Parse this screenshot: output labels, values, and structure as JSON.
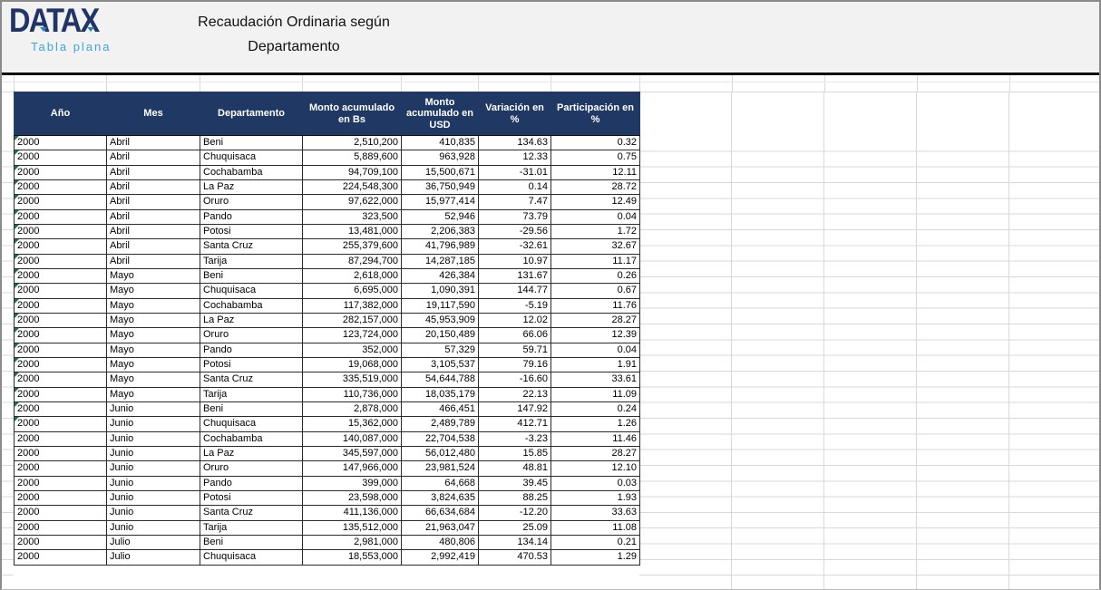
{
  "header": {
    "logo_title": "DATAX",
    "logo_subtitle": "Tabla plana",
    "title_line1": "Recaudación Ordinaria según",
    "title_line2": "Departamento"
  },
  "colors": {
    "table_header_bg": "#1f3864",
    "logo_navy": "#203468",
    "logo_blue": "#3fa3dc",
    "gridline": "#d9d9d9",
    "flag_green": "#217346",
    "top_band_bg": "#f2f2f2"
  },
  "table": {
    "columns": [
      "Año",
      "Mes",
      "Departamento",
      "Monto acumulado en Bs",
      "Monto acumulado en USD",
      "Variación en %",
      "Participación en %"
    ],
    "flagged_row_count": 20,
    "rows": [
      [
        "2000",
        "Abril",
        "Beni",
        "2,510,200",
        "410,835",
        "134.63",
        "0.32"
      ],
      [
        "2000",
        "Abril",
        "Chuquisaca",
        "5,889,600",
        "963,928",
        "12.33",
        "0.75"
      ],
      [
        "2000",
        "Abril",
        "Cochabamba",
        "94,709,100",
        "15,500,671",
        "-31.01",
        "12.11"
      ],
      [
        "2000",
        "Abril",
        "La Paz",
        "224,548,300",
        "36,750,949",
        "0.14",
        "28.72"
      ],
      [
        "2000",
        "Abril",
        "Oruro",
        "97,622,000",
        "15,977,414",
        "7.47",
        "12.49"
      ],
      [
        "2000",
        "Abril",
        "Pando",
        "323,500",
        "52,946",
        "73.79",
        "0.04"
      ],
      [
        "2000",
        "Abril",
        "Potosi",
        "13,481,000",
        "2,206,383",
        "-29.56",
        "1.72"
      ],
      [
        "2000",
        "Abril",
        "Santa Cruz",
        "255,379,600",
        "41,796,989",
        "-32.61",
        "32.67"
      ],
      [
        "2000",
        "Abril",
        "Tarija",
        "87,294,700",
        "14,287,185",
        "10.97",
        "11.17"
      ],
      [
        "2000",
        "Mayo",
        "Beni",
        "2,618,000",
        "426,384",
        "131.67",
        "0.26"
      ],
      [
        "2000",
        "Mayo",
        "Chuquisaca",
        "6,695,000",
        "1,090,391",
        "144.77",
        "0.67"
      ],
      [
        "2000",
        "Mayo",
        "Cochabamba",
        "117,382,000",
        "19,117,590",
        "-5.19",
        "11.76"
      ],
      [
        "2000",
        "Mayo",
        "La Paz",
        "282,157,000",
        "45,953,909",
        "12.02",
        "28.27"
      ],
      [
        "2000",
        "Mayo",
        "Oruro",
        "123,724,000",
        "20,150,489",
        "66.06",
        "12.39"
      ],
      [
        "2000",
        "Mayo",
        "Pando",
        "352,000",
        "57,329",
        "59.71",
        "0.04"
      ],
      [
        "2000",
        "Mayo",
        "Potosi",
        "19,068,000",
        "3,105,537",
        "79.16",
        "1.91"
      ],
      [
        "2000",
        "Mayo",
        "Santa Cruz",
        "335,519,000",
        "54,644,788",
        "-16.60",
        "33.61"
      ],
      [
        "2000",
        "Mayo",
        "Tarija",
        "110,736,000",
        "18,035,179",
        "22.13",
        "11.09"
      ],
      [
        "2000",
        "Junio",
        "Beni",
        "2,878,000",
        "466,451",
        "147.92",
        "0.24"
      ],
      [
        "2000",
        "Junio",
        "Chuquisaca",
        "15,362,000",
        "2,489,789",
        "412.71",
        "1.26"
      ],
      [
        "2000",
        "Junio",
        "Cochabamba",
        "140,087,000",
        "22,704,538",
        "-3.23",
        "11.46"
      ],
      [
        "2000",
        "Junio",
        "La Paz",
        "345,597,000",
        "56,012,480",
        "15.85",
        "28.27"
      ],
      [
        "2000",
        "Junio",
        "Oruro",
        "147,966,000",
        "23,981,524",
        "48.81",
        "12.10"
      ],
      [
        "2000",
        "Junio",
        "Pando",
        "399,000",
        "64,668",
        "39.45",
        "0.03"
      ],
      [
        "2000",
        "Junio",
        "Potosi",
        "23,598,000",
        "3,824,635",
        "88.25",
        "1.93"
      ],
      [
        "2000",
        "Junio",
        "Santa Cruz",
        "411,136,000",
        "66,634,684",
        "-12.20",
        "33.63"
      ],
      [
        "2000",
        "Junio",
        "Tarija",
        "135,512,000",
        "21,963,047",
        "25.09",
        "11.08"
      ],
      [
        "2000",
        "Julio",
        "Beni",
        "2,981,000",
        "480,806",
        "134.14",
        "0.21"
      ],
      [
        "2000",
        "Julio",
        "Chuquisaca",
        "18,553,000",
        "2,992,419",
        "470.53",
        "1.29"
      ]
    ]
  }
}
